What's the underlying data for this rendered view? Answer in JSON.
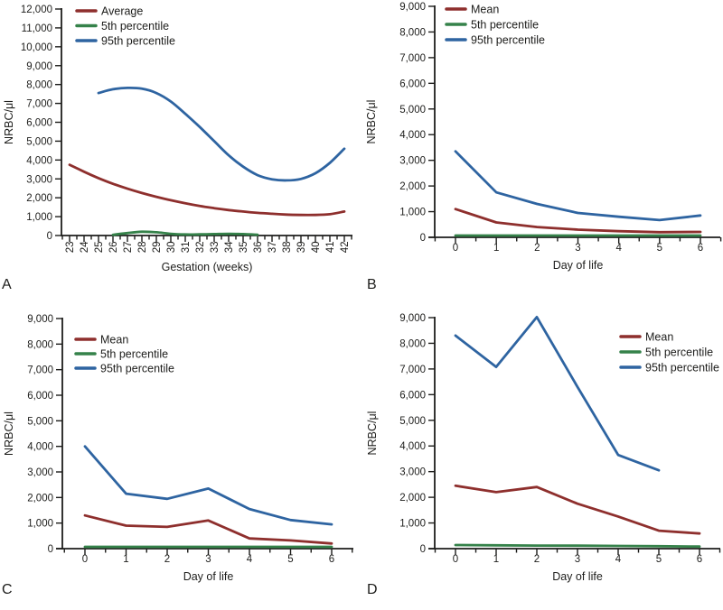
{
  "figure": {
    "description": "Four-panel NRBC line chart figure",
    "text_color": "#1d1d1b",
    "background": "#ffffff",
    "series_colors": {
      "mean": "#8E2F2D",
      "p5": "#35824A",
      "p95": "#2E64A1"
    }
  },
  "chart_data": [
    {
      "panel_label": "A",
      "type": "line",
      "title": "",
      "xlabel": "Gestation (weeks)",
      "ylabel": "NRBC/μl",
      "ylim": [
        0,
        12000
      ],
      "grid": false,
      "yticks": [
        0,
        1000,
        2000,
        3000,
        4000,
        5000,
        6000,
        7000,
        8000,
        9000,
        10000,
        11000,
        12000
      ],
      "ytick_labels": [
        "0",
        "1,000",
        "2,000",
        "3,000",
        "4,000",
        "5,000",
        "6,000",
        "7,000",
        "8,000",
        "9,000",
        "10,000",
        "11,000",
        "12,000"
      ],
      "xticks": [
        23,
        24,
        25,
        26,
        27,
        28,
        29,
        30,
        31,
        32,
        33,
        34,
        35,
        36,
        37,
        38,
        39,
        40,
        41,
        42
      ],
      "xtick_labels": [
        "23",
        "24",
        "25",
        "26",
        "27",
        "28",
        "29",
        "30",
        "31",
        "32",
        "33",
        "34",
        "35",
        "36",
        "37",
        "38",
        "39",
        "40",
        "41",
        "42"
      ],
      "xtick_rotated": true,
      "x_minor_interval": 0.5,
      "legend": {
        "position": "top-left",
        "entries": [
          {
            "label": "Average",
            "color": "#8E2F2D"
          },
          {
            "label": "5th percentile",
            "color": "#35824A"
          },
          {
            "label": "95th percentile",
            "color": "#2E64A1"
          }
        ]
      },
      "series": [
        {
          "name": "Average",
          "color": "#8E2F2D",
          "smooth": true,
          "x": [
            23,
            24,
            25,
            26,
            27,
            28,
            29,
            30,
            31,
            32,
            33,
            34,
            35,
            36,
            37,
            38,
            39,
            40,
            41,
            42
          ],
          "y": [
            3750,
            3380,
            3040,
            2740,
            2480,
            2250,
            2050,
            1870,
            1710,
            1570,
            1450,
            1350,
            1270,
            1200,
            1150,
            1110,
            1090,
            1090,
            1130,
            1270
          ]
        },
        {
          "name": "5th percentile",
          "color": "#35824A",
          "smooth": true,
          "x": [
            26,
            27,
            28,
            29,
            30,
            31,
            32,
            33,
            34,
            35,
            36
          ],
          "y": [
            40,
            130,
            200,
            170,
            90,
            55,
            60,
            75,
            90,
            75,
            40
          ]
        },
        {
          "name": "95th percentile",
          "color": "#2E64A1",
          "smooth": true,
          "x": [
            25,
            26,
            27,
            28,
            29,
            30,
            31,
            32,
            33,
            34,
            35,
            36,
            37,
            38,
            39,
            40,
            41,
            42
          ],
          "y": [
            7550,
            7750,
            7820,
            7780,
            7550,
            7100,
            6450,
            5750,
            5000,
            4250,
            3650,
            3200,
            2980,
            2920,
            3000,
            3300,
            3850,
            4600
          ]
        }
      ]
    },
    {
      "panel_label": "B",
      "type": "line",
      "title": "",
      "xlabel": "Day of life",
      "ylabel": "NRBC/μl",
      "ylim": [
        0,
        9000
      ],
      "grid": false,
      "yticks": [
        0,
        1000,
        2000,
        3000,
        4000,
        5000,
        6000,
        7000,
        8000,
        9000
      ],
      "ytick_labels": [
        "0",
        "1,000",
        "2,000",
        "3,000",
        "4,000",
        "5,000",
        "6,000",
        "7,000",
        "8,000",
        "9,000"
      ],
      "xticks": [
        0,
        1,
        2,
        3,
        4,
        5,
        6
      ],
      "xtick_labels": [
        "0",
        "1",
        "2",
        "3",
        "4",
        "5",
        "6"
      ],
      "xtick_rotated": false,
      "x_minor_interval": 0.5,
      "legend": {
        "position": "top-left",
        "entries": [
          {
            "label": "Mean",
            "color": "#8E2F2D"
          },
          {
            "label": "5th percentile",
            "color": "#35824A"
          },
          {
            "label": "95th percentile",
            "color": "#2E64A1"
          }
        ]
      },
      "series": [
        {
          "name": "Mean",
          "color": "#8E2F2D",
          "smooth": false,
          "x": [
            0,
            1,
            2,
            3,
            4,
            5,
            6
          ],
          "y": [
            1100,
            580,
            400,
            300,
            240,
            200,
            210
          ]
        },
        {
          "name": "5th percentile",
          "color": "#35824A",
          "smooth": false,
          "x": [
            0,
            1,
            2,
            3,
            4,
            5,
            6
          ],
          "y": [
            70,
            70,
            70,
            70,
            70,
            70,
            70
          ]
        },
        {
          "name": "95th percentile",
          "color": "#2E64A1",
          "smooth": false,
          "x": [
            0,
            1,
            2,
            3,
            4,
            5,
            6
          ],
          "y": [
            3350,
            1750,
            1300,
            950,
            800,
            670,
            850
          ]
        }
      ]
    },
    {
      "panel_label": "C",
      "type": "line",
      "title": "",
      "xlabel": "Day of life",
      "ylabel": "NRBC/μl",
      "ylim": [
        0,
        9000
      ],
      "grid": false,
      "yticks": [
        0,
        1000,
        2000,
        3000,
        4000,
        5000,
        6000,
        7000,
        8000,
        9000
      ],
      "ytick_labels": [
        "0",
        "1,000",
        "2,000",
        "3,000",
        "4,000",
        "5,000",
        "6,000",
        "7,000",
        "8,000",
        "9,000"
      ],
      "xticks": [
        0,
        1,
        2,
        3,
        4,
        5,
        6
      ],
      "xtick_labels": [
        "0",
        "1",
        "2",
        "3",
        "4",
        "5",
        "6"
      ],
      "xtick_rotated": false,
      "x_minor_interval": 0.5,
      "legend": {
        "position": "top-left",
        "entries": [
          {
            "label": "Mean",
            "color": "#8E2F2D"
          },
          {
            "label": "5th percentile",
            "color": "#35824A"
          },
          {
            "label": "95th percentile",
            "color": "#2E64A1"
          }
        ]
      },
      "series": [
        {
          "name": "Mean",
          "color": "#8E2F2D",
          "smooth": false,
          "x": [
            0,
            1,
            2,
            3,
            4,
            5,
            6
          ],
          "y": [
            1300,
            900,
            850,
            1100,
            400,
            320,
            200
          ]
        },
        {
          "name": "5th percentile",
          "color": "#35824A",
          "smooth": false,
          "x": [
            0,
            1,
            2,
            3,
            4,
            5,
            6
          ],
          "y": [
            70,
            70,
            70,
            70,
            70,
            70,
            70
          ]
        },
        {
          "name": "95th percentile",
          "color": "#2E64A1",
          "smooth": false,
          "x": [
            0,
            1,
            2,
            3,
            4,
            5,
            6
          ],
          "y": [
            4000,
            2150,
            1950,
            2350,
            1550,
            1120,
            950
          ]
        }
      ]
    },
    {
      "panel_label": "D",
      "type": "line",
      "title": "",
      "xlabel": "Day of life",
      "ylabel": "NRBC/μl",
      "ylim": [
        0,
        9000
      ],
      "grid": false,
      "yticks": [
        0,
        1000,
        2000,
        3000,
        4000,
        5000,
        6000,
        7000,
        8000,
        9000
      ],
      "ytick_labels": [
        "0",
        "1,000",
        "2,000",
        "3,000",
        "4,000",
        "5,000",
        "6,000",
        "7,000",
        "8,000",
        "9,000"
      ],
      "xticks": [
        0,
        1,
        2,
        3,
        4,
        5,
        6
      ],
      "xtick_labels": [
        "0",
        "1",
        "2",
        "3",
        "4",
        "5",
        "6"
      ],
      "xtick_rotated": false,
      "x_minor_interval": 0.5,
      "legend": {
        "position": "top-right",
        "entries": [
          {
            "label": "Mean",
            "color": "#8E2F2D"
          },
          {
            "label": "5th percentile",
            "color": "#35824A"
          },
          {
            "label": "95th percentile",
            "color": "#2E64A1"
          }
        ]
      },
      "series": [
        {
          "name": "Mean",
          "color": "#8E2F2D",
          "smooth": false,
          "x": [
            0,
            1,
            2,
            3,
            4,
            5,
            6
          ],
          "y": [
            2450,
            2200,
            2400,
            1750,
            1250,
            700,
            590
          ]
        },
        {
          "name": "5th percentile",
          "color": "#35824A",
          "smooth": false,
          "x": [
            0,
            1,
            2,
            3,
            4,
            5,
            6
          ],
          "y": [
            140,
            130,
            120,
            115,
            105,
            95,
            80
          ]
        },
        {
          "name": "95th percentile",
          "color": "#2E64A1",
          "smooth": false,
          "x": [
            0,
            1,
            2,
            3,
            4,
            5
          ],
          "y": [
            8300,
            7080,
            9020,
            6300,
            3650,
            3050
          ]
        }
      ]
    }
  ]
}
